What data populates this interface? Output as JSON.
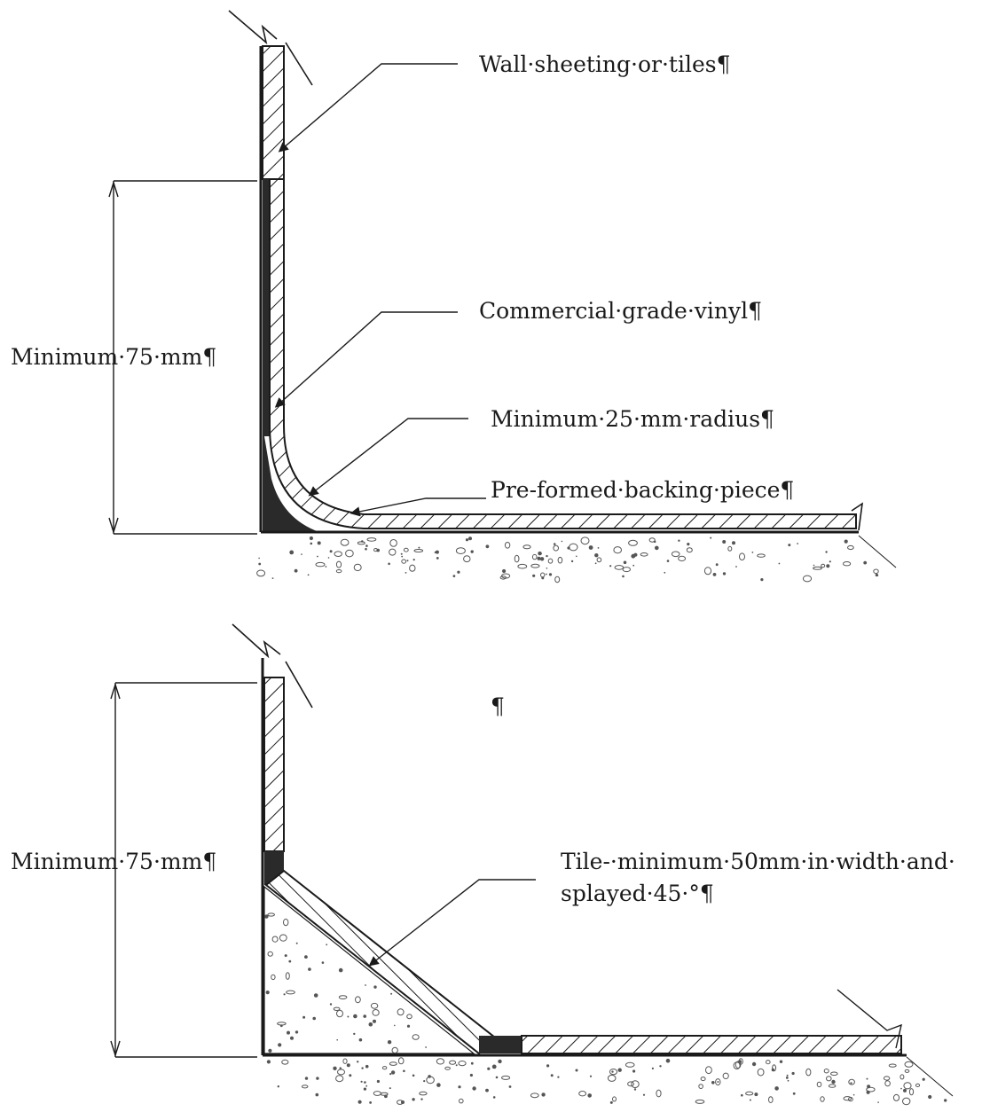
{
  "diagram_top": {
    "labels": {
      "wall": "Wall·sheeting·or·tiles¶",
      "vinyl": "Commercial·grade·vinyl¶",
      "radius": "Minimum·25·mm·radius¶",
      "backing": "Pre-formed·backing·piece¶",
      "height": "Minimum·75·mm¶"
    }
  },
  "diagram_bottom": {
    "labels": {
      "pilcrow": "¶",
      "height": "Minimum·75·mm¶",
      "tile_line1": "Tile-·minimum·50mm·in·width·and·",
      "tile_line2": "splayed·45·°¶"
    }
  },
  "colors": {
    "ink": "#1a1a1a",
    "fill_dark": "#2a2a2a",
    "concrete_speckle": "#555555"
  }
}
